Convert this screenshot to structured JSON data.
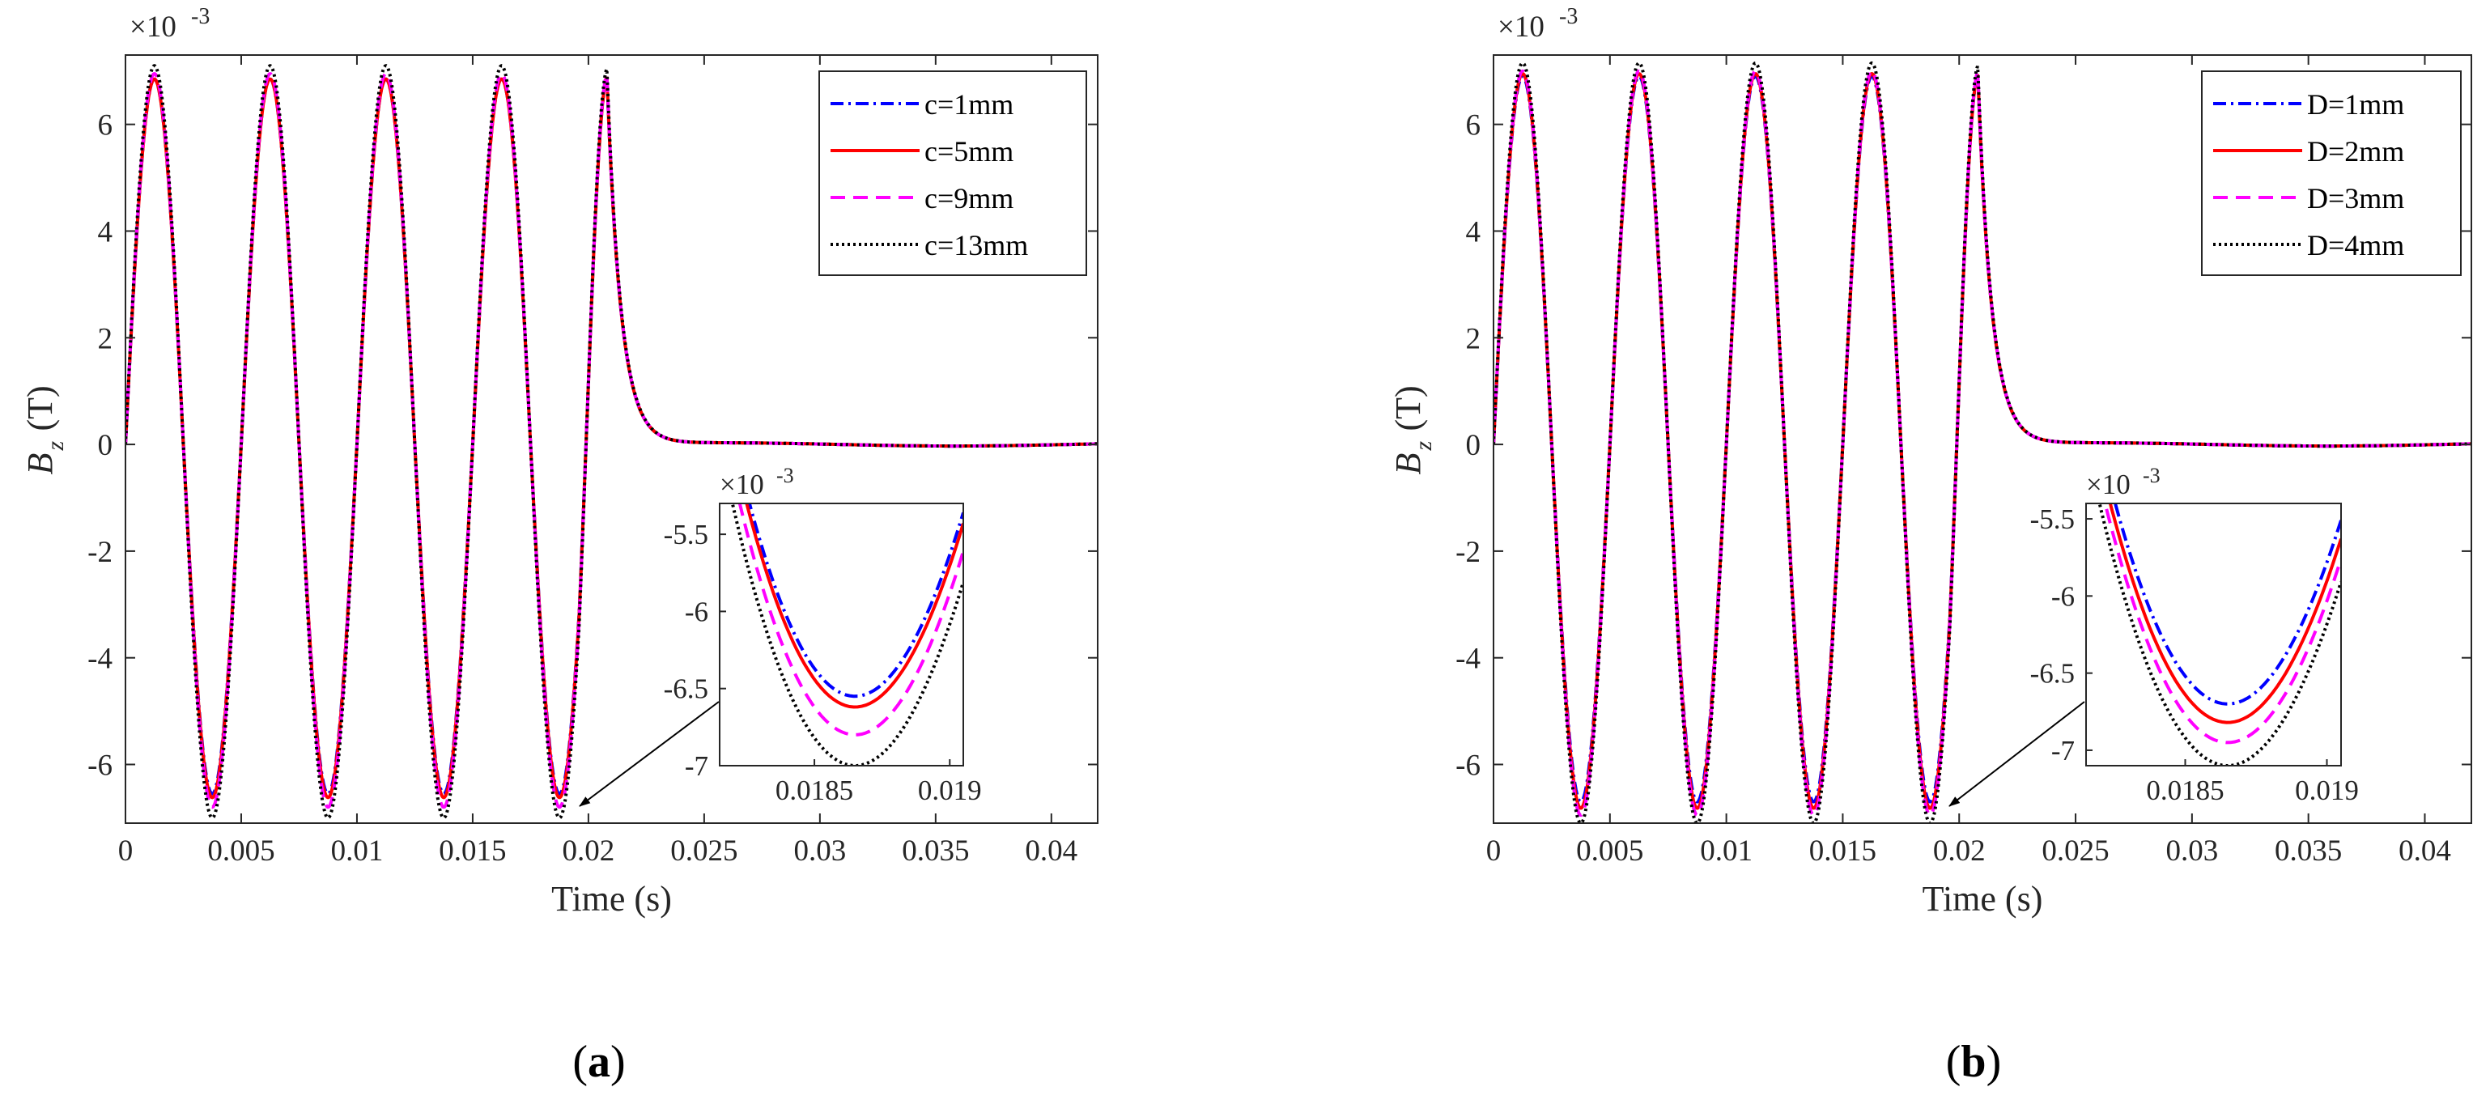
{
  "chart_data": [
    {
      "type": "line",
      "panel_label": "a",
      "xlabel": "Time (s)",
      "ylabel_main": "B",
      "ylabel_sub": "z",
      "ylabel_unit": "(T)",
      "exponent_base": "×10",
      "exponent_power": "-3",
      "xlim": [
        0,
        0.042
      ],
      "ylim": [
        -7.1,
        7.3
      ],
      "xticks": [
        0,
        0.005,
        0.01,
        0.015,
        0.02,
        0.025,
        0.03,
        0.035,
        0.04
      ],
      "xtick_labels": [
        "0",
        "0.005",
        "0.01",
        "0.015",
        "0.02",
        "0.025",
        "0.03",
        "0.035",
        "0.04"
      ],
      "yticks": [
        -6,
        -4,
        -2,
        0,
        2,
        4,
        6
      ],
      "ytick_labels": [
        "-6",
        "-4",
        "-2",
        "0",
        "2",
        "4",
        "6"
      ],
      "signal": {
        "burst_end": 0.0208,
        "period": 0.005,
        "decay_tau": 0.0006,
        "post_decay_level": 0.03
      },
      "legend_position": "top-right",
      "series": [
        {
          "name": "c=1mm",
          "color": "#0000ff",
          "style": "dashdot",
          "amp_pos": 6.85,
          "amp_neg": 6.55,
          "final_peak": 6.9
        },
        {
          "name": "c=5mm",
          "color": "#ff0000",
          "style": "solid",
          "amp_pos": 6.85,
          "amp_neg": 6.62,
          "final_peak": 6.9
        },
        {
          "name": "c=9mm",
          "color": "#ff00ff",
          "style": "dashed",
          "amp_pos": 6.95,
          "amp_neg": 6.8,
          "final_peak": 6.95
        },
        {
          "name": "c=13mm",
          "color": "#000000",
          "style": "dotted",
          "amp_pos": 7.1,
          "amp_neg": 7.0,
          "final_peak": 7.05
        }
      ],
      "inset": {
        "exponent_base": "×10",
        "exponent_power": "-3",
        "xlim": [
          0.01815,
          0.01905
        ],
        "ylim": [
          -7.0,
          -5.3
        ],
        "xticks": [
          0.0185,
          0.019
        ],
        "xtick_labels": [
          "0.0185",
          "0.019"
        ],
        "yticks": [
          -7,
          -6.5,
          -6,
          -5.5
        ],
        "ytick_labels": [
          "-7",
          "-6.5",
          "-6",
          "-5.5"
        ]
      }
    },
    {
      "type": "line",
      "panel_label": "b",
      "xlabel": "Time (s)",
      "ylabel_main": "B",
      "ylabel_sub": "z",
      "ylabel_unit": "(T)",
      "exponent_base": "×10",
      "exponent_power": "-3",
      "xlim": [
        0,
        0.042
      ],
      "ylim": [
        -7.1,
        7.3
      ],
      "xticks": [
        0,
        0.005,
        0.01,
        0.015,
        0.02,
        0.025,
        0.03,
        0.035,
        0.04
      ],
      "xtick_labels": [
        "0",
        "0.005",
        "0.01",
        "0.015",
        "0.02",
        "0.025",
        "0.03",
        "0.035",
        "0.04"
      ],
      "yticks": [
        -6,
        -4,
        -2,
        0,
        2,
        4,
        6
      ],
      "ytick_labels": [
        "-6",
        "-4",
        "-2",
        "0",
        "2",
        "4",
        "6"
      ],
      "signal": {
        "burst_end": 0.0208,
        "period": 0.005,
        "decay_tau": 0.0006,
        "post_decay_level": 0.03
      },
      "legend_position": "top-right",
      "series": [
        {
          "name": "D=1mm",
          "color": "#0000ff",
          "style": "dashdot",
          "amp_pos": 6.9,
          "amp_neg": 6.7,
          "final_peak": 6.95
        },
        {
          "name": "D=2mm",
          "color": "#ff0000",
          "style": "solid",
          "amp_pos": 6.95,
          "amp_neg": 6.82,
          "final_peak": 6.95
        },
        {
          "name": "D=3mm",
          "color": "#ff00ff",
          "style": "dashed",
          "amp_pos": 7.0,
          "amp_neg": 6.95,
          "final_peak": 7.0
        },
        {
          "name": "D=4mm",
          "color": "#000000",
          "style": "dotted",
          "amp_pos": 7.15,
          "amp_neg": 7.1,
          "final_peak": 7.1
        }
      ],
      "inset": {
        "exponent_base": "×10",
        "exponent_power": "-3",
        "xlim": [
          0.01815,
          0.01905
        ],
        "ylim": [
          -7.1,
          -5.4
        ],
        "xticks": [
          0.0185,
          0.019
        ],
        "xtick_labels": [
          "0.0185",
          "0.019"
        ],
        "yticks": [
          -7,
          -6.5,
          -6,
          -5.5
        ],
        "ytick_labels": [
          "-7",
          "-6.5",
          "-6",
          "-5.5"
        ]
      }
    }
  ]
}
